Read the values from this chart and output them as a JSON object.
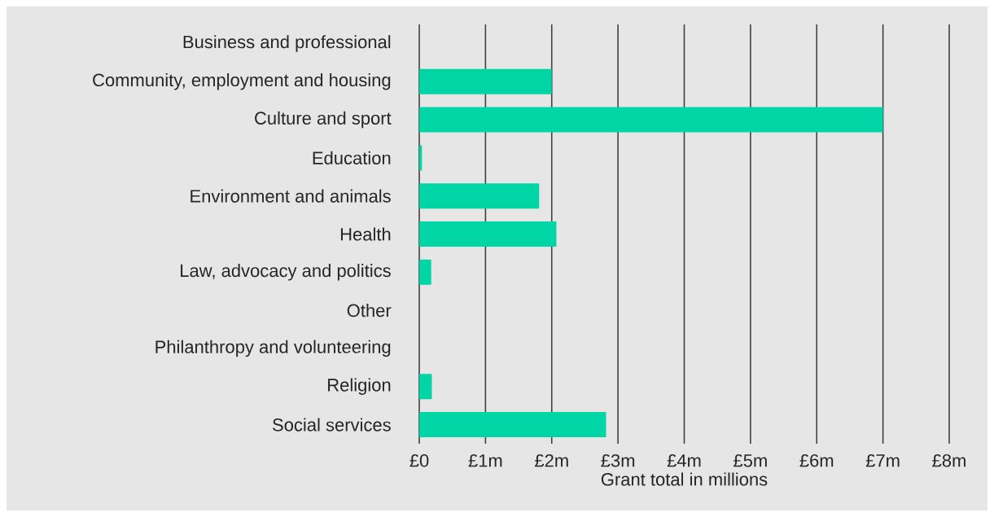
{
  "chart_data": {
    "type": "bar",
    "orientation": "horizontal",
    "categories": [
      "Business and professional",
      "Community, employment and housing",
      "Culture and sport",
      "Education",
      "Environment and animals",
      "Health",
      "Law, advocacy and politics",
      "Other",
      "Philanthropy and volunteering",
      "Religion",
      "Social services"
    ],
    "values": [
      0,
      2.0,
      7.0,
      0.04,
      1.81,
      2.07,
      0.18,
      0,
      0,
      0.19,
      2.82
    ],
    "color": "#00d6a5",
    "xlabel": "Grant total in millions",
    "xlim": [
      0,
      8
    ],
    "xticks": [
      {
        "value": 0,
        "label": "£0"
      },
      {
        "value": 1,
        "label": "£1m"
      },
      {
        "value": 2,
        "label": "£2m"
      },
      {
        "value": 3,
        "label": "£3m"
      },
      {
        "value": 4,
        "label": "£4m"
      },
      {
        "value": 5,
        "label": "£5m"
      },
      {
        "value": 6,
        "label": "£6m"
      },
      {
        "value": 7,
        "label": "£7m"
      },
      {
        "value": 8,
        "label": "£8m"
      }
    ],
    "grid": "x"
  }
}
